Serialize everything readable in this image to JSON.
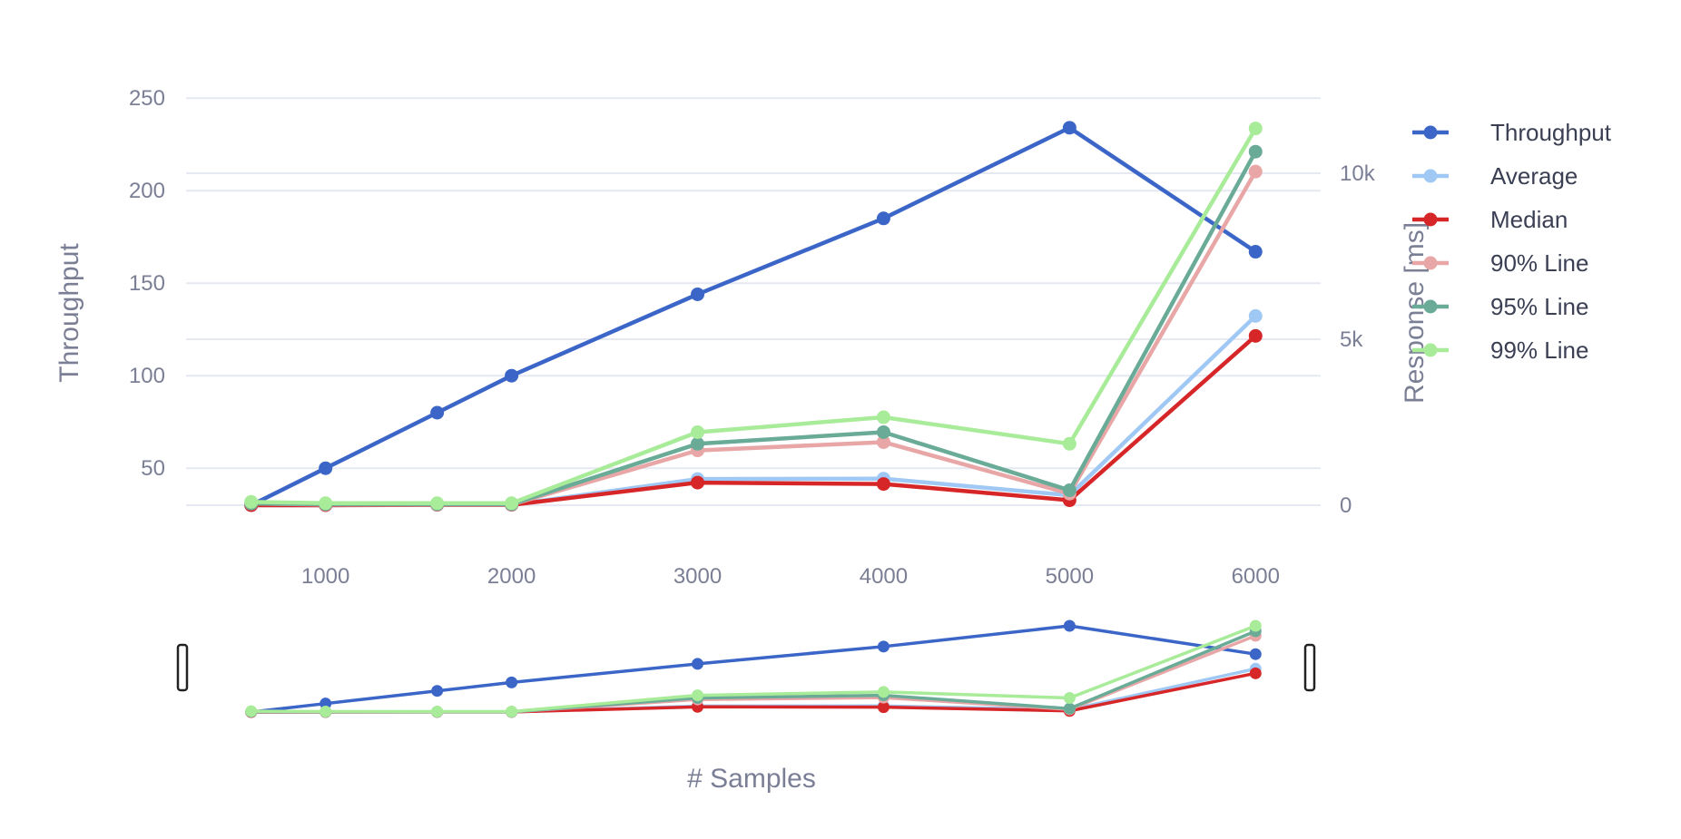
{
  "chart_data": {
    "type": "line",
    "x": [
      600,
      1000,
      1600,
      2000,
      3000,
      4000,
      5000,
      6000
    ],
    "xlabel": "# Samples",
    "x_ticks": [
      "1000",
      "2000",
      "3000",
      "4000",
      "5000",
      "6000"
    ],
    "x_tick_values": [
      1000,
      2000,
      3000,
      4000,
      5000,
      6000
    ],
    "xlim": [
      250,
      6350
    ],
    "y_left": {
      "label": "Throughput",
      "ticks": [
        "50",
        "100",
        "150",
        "200",
        "250"
      ],
      "tick_values": [
        50,
        100,
        150,
        200,
        250
      ],
      "range": [
        30,
        250
      ]
    },
    "y_right": {
      "label": "Response [ms]",
      "ticks": [
        "0",
        "5k",
        "10k"
      ],
      "tick_values": [
        0,
        5000,
        10000
      ],
      "range": [
        0,
        10000
      ]
    },
    "series": [
      {
        "name": "Throughput",
        "axis": "left",
        "color": "#3b66c8",
        "values": [
          30,
          50,
          80,
          100,
          144,
          185,
          234,
          167
        ]
      },
      {
        "name": "Average",
        "axis": "right",
        "color": "#a0c8f5",
        "values": [
          0,
          0,
          10,
          10,
          790,
          800,
          300,
          5700
        ]
      },
      {
        "name": "Median",
        "axis": "right",
        "color": "#d62628",
        "values": [
          0,
          0,
          10,
          10,
          680,
          640,
          150,
          5100
        ]
      },
      {
        "name": "90% Line",
        "axis": "right",
        "color": "#e8a6a6",
        "values": [
          50,
          20,
          20,
          20,
          1650,
          1900,
          350,
          10050
        ]
      },
      {
        "name": "95% Line",
        "axis": "right",
        "color": "#6aab98",
        "values": [
          50,
          30,
          30,
          30,
          1850,
          2200,
          450,
          10650
        ]
      },
      {
        "name": "99% Line",
        "axis": "right",
        "color": "#a8eb98",
        "values": [
          100,
          60,
          60,
          60,
          2200,
          2650,
          1850,
          11350
        ]
      }
    ],
    "legend_position": "top-right",
    "grid": true,
    "range_slider": true
  }
}
